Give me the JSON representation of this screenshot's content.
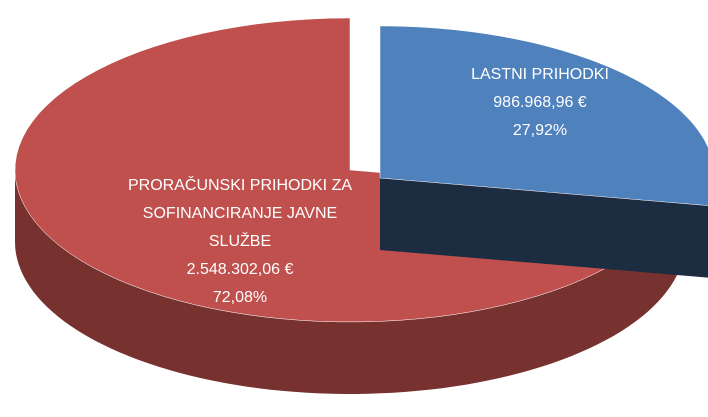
{
  "chart_data": {
    "type": "pie",
    "categories": [
      "LASTNI PRIHODKI",
      "PRORAČUNSKI PRIHODKI ZA SOFINANCIRANJE JAVNE SLUŽBE"
    ],
    "values": [
      986968.96,
      2548302.06
    ],
    "value_labels": [
      "986.968,96 €",
      "2.548.302,06 €"
    ],
    "percentages": [
      27.92,
      72.08
    ],
    "percentage_labels": [
      "27,92%",
      "72,08%"
    ],
    "colors": [
      "#4f81bd",
      "#c0504d"
    ]
  }
}
